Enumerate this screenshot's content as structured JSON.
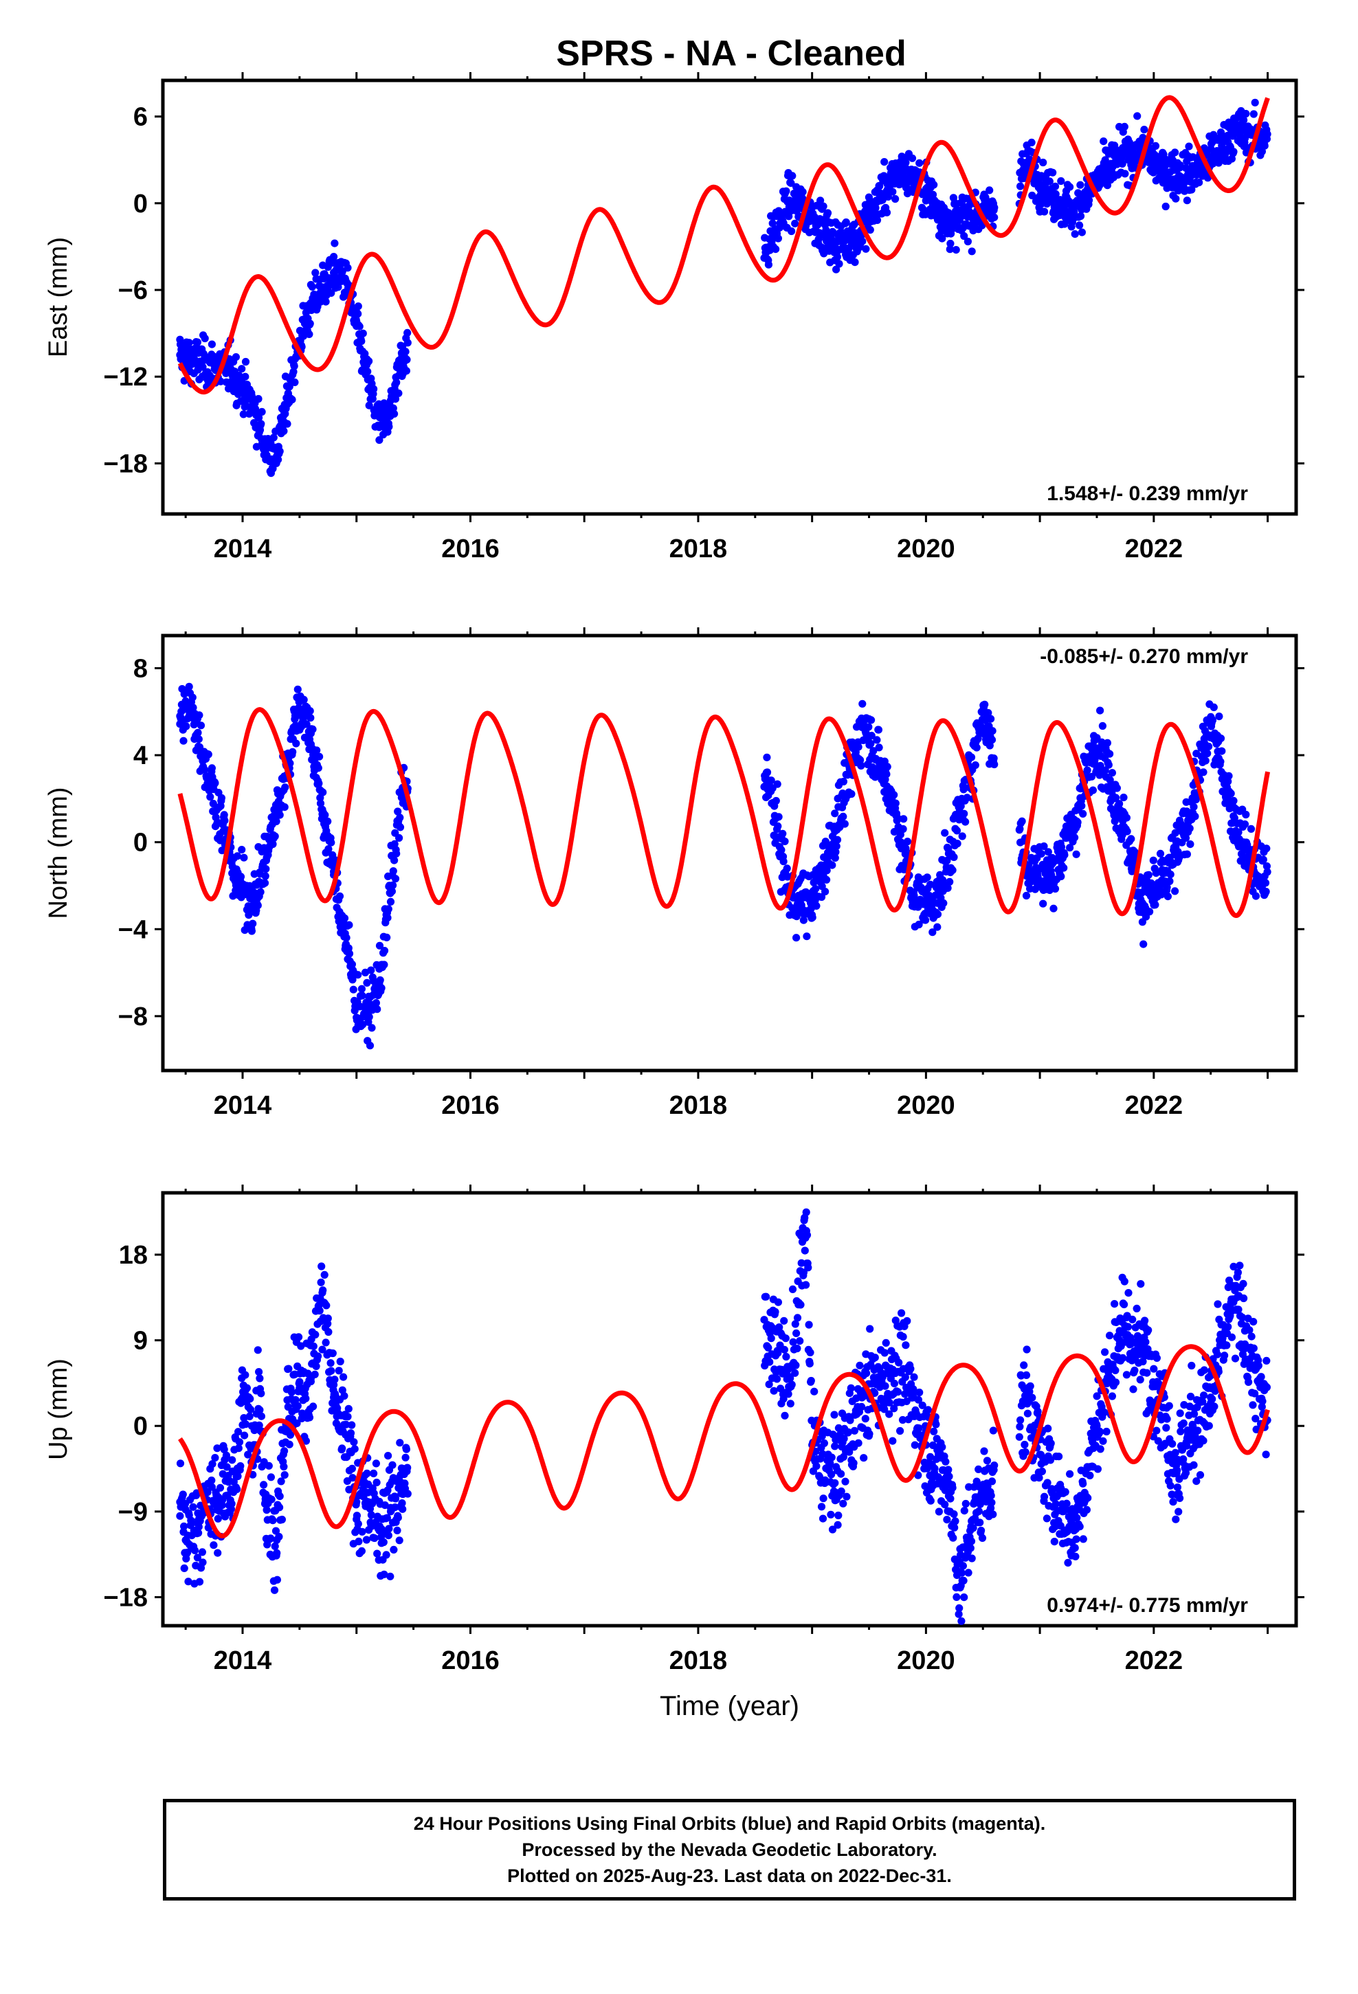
{
  "title": "SPRS  - NA - Cleaned",
  "footer": {
    "line1": "24 Hour Positions Using Final Orbits (blue) and Rapid Orbits (magenta).",
    "line2": "Processed by the Nevada Geodetic Laboratory.",
    "line3": "Plotted on 2025-Aug-23. Last data on 2022-Dec-31."
  },
  "colors": {
    "observations": "#0000ff",
    "model": "#ff0000",
    "frame": "#000000"
  },
  "chart_data": [
    {
      "type": "scatter",
      "name": "east",
      "title": "",
      "xlabel": "",
      "ylabel": "East (mm)",
      "xlim": [
        2013.3,
        2023.25
      ],
      "ylim": [
        -21.5,
        8.5
      ],
      "xticks": [
        2014,
        2016,
        2018,
        2020,
        2022
      ],
      "yticks": [
        -18,
        -12,
        -6,
        0,
        6
      ],
      "rate_label": "1.548+/- 0.239 mm/yr",
      "rate_label_position": "bottom-right",
      "data_segments": [
        [
          2013.45,
          2015.45
        ],
        [
          2018.58,
          2020.6
        ],
        [
          2020.82,
          2023.0
        ]
      ],
      "series": [
        {
          "name": "",
          "kind": "points",
          "color": "#0000ff",
          "x": [
            2013.45,
            2013.5,
            2013.9,
            2014.0,
            2014.1,
            2014.2,
            2014.3,
            2014.4,
            2014.5,
            2014.6,
            2014.7,
            2014.8,
            2014.9,
            2015.0,
            2015.1,
            2015.2,
            2015.3,
            2015.4,
            2018.6,
            2018.8,
            2019.0,
            2019.2,
            2019.4,
            2019.6,
            2019.8,
            2020.0,
            2020.2,
            2020.4,
            2020.6,
            2020.9,
            2021.1,
            2021.3,
            2021.5,
            2021.7,
            2021.9,
            2022.1,
            2022.3,
            2022.5,
            2022.7,
            2022.9
          ],
          "y": [
            -10.5,
            -10.8,
            -11.5,
            -12.8,
            -14.2,
            -16.8,
            -17.5,
            -13.2,
            -9.5,
            -7.2,
            -5.8,
            -4.8,
            -5.2,
            -8.5,
            -12.2,
            -15.5,
            -14.2,
            -10.5,
            -3.2,
            0.2,
            -0.8,
            -2.8,
            -2.3,
            0.5,
            2.3,
            1.0,
            -1.5,
            -0.8,
            -0.3,
            2.6,
            0.6,
            -0.6,
            1.5,
            3.2,
            3.6,
            2.2,
            2.0,
            3.0,
            5.0,
            4.5
          ]
        },
        {
          "name": "",
          "kind": "model",
          "color": "#ff0000",
          "start_year": 2013.45,
          "end_year": 2023.0,
          "offset_at_start": -9.9,
          "rate_mm_per_yr": 1.548,
          "annual_sin": 2.85,
          "annual_cos": 2.2,
          "semiannual_sin": 0.2,
          "semiannual_cos": 0.2
        }
      ]
    },
    {
      "type": "scatter",
      "name": "north",
      "title": "",
      "xlabel": "",
      "ylabel": "North (mm)",
      "xlim": [
        2013.3,
        2023.25
      ],
      "ylim": [
        -10.5,
        9.5
      ],
      "xticks": [
        2014,
        2016,
        2018,
        2020,
        2022
      ],
      "yticks": [
        -8,
        -4,
        0,
        4,
        8
      ],
      "rate_label": "-0.085+/- 0.270 mm/yr",
      "rate_label_position": "top-right",
      "data_segments": [
        [
          2013.45,
          2015.45
        ],
        [
          2018.58,
          2020.6
        ],
        [
          2020.82,
          2023.0
        ]
      ],
      "series": [
        {
          "name": "",
          "kind": "points",
          "color": "#0000ff",
          "x": [
            2013.45,
            2013.55,
            2013.95,
            2014.1,
            2014.25,
            2014.4,
            2014.5,
            2014.6,
            2014.7,
            2014.8,
            2014.9,
            2015.0,
            2015.1,
            2015.2,
            2015.3,
            2015.4,
            2018.6,
            2018.8,
            2019.0,
            2019.2,
            2019.45,
            2019.7,
            2019.9,
            2020.1,
            2020.3,
            2020.5,
            2020.9,
            2021.1,
            2021.3,
            2021.5,
            2021.7,
            2021.9,
            2022.1,
            2022.3,
            2022.5,
            2022.7,
            2022.9
          ],
          "y": [
            5.8,
            6.2,
            -1.8,
            -2.8,
            0.2,
            3.8,
            6.5,
            5.0,
            1.5,
            -1.5,
            -4.2,
            -7.5,
            -7.8,
            -6.5,
            -2.0,
            2.2,
            3.2,
            -2.5,
            -2.8,
            0.5,
            5.5,
            2.0,
            -2.6,
            -2.8,
            1.2,
            6.0,
            -1.2,
            -1.5,
            0.8,
            4.8,
            1.5,
            -2.8,
            -1.8,
            1.0,
            5.5,
            1.2,
            -1.5
          ]
        },
        {
          "name": "",
          "kind": "model",
          "color": "#ff0000",
          "start_year": 2013.45,
          "end_year": 2023.0,
          "offset_at_start": 2.05,
          "rate_mm_per_yr": -0.085,
          "annual_sin": 4.0,
          "annual_cos": 1.45,
          "semiannual_sin": 0.2,
          "semiannual_cos": 0.55
        }
      ]
    },
    {
      "type": "scatter",
      "name": "up",
      "title": "",
      "xlabel": "Time (year)",
      "ylabel": "Up (mm)",
      "xlim": [
        2013.3,
        2023.25
      ],
      "ylim": [
        -21,
        24.5
      ],
      "xticks": [
        2014,
        2016,
        2018,
        2020,
        2022
      ],
      "yticks": [
        -18,
        -9,
        0,
        9,
        18
      ],
      "rate_label": "0.974+/- 0.775 mm/yr",
      "rate_label_position": "bottom-right",
      "data_segments": [
        [
          2013.45,
          2015.45
        ],
        [
          2018.58,
          2020.6
        ],
        [
          2020.82,
          2023.0
        ]
      ],
      "series": [
        {
          "name": "",
          "kind": "points",
          "color": "#0000ff",
          "x": [
            2013.45,
            2013.5,
            2013.95,
            2014.0,
            2014.1,
            2014.15,
            2014.2,
            2014.3,
            2014.4,
            2014.5,
            2014.6,
            2014.7,
            2014.8,
            2014.9,
            2015.0,
            2015.1,
            2015.2,
            2015.3,
            2015.4,
            2018.65,
            2018.8,
            2018.95,
            2019.0,
            2019.2,
            2019.4,
            2019.6,
            2019.8,
            2020.0,
            2020.2,
            2020.3,
            2020.4,
            2020.9,
            2021.0,
            2021.2,
            2021.3,
            2021.5,
            2021.6,
            2021.7,
            2021.9,
            2022.0,
            2022.2,
            2022.3,
            2022.5,
            2022.7,
            2022.8,
            2022.95
          ],
          "y": [
            -8.0,
            -12.0,
            -5.0,
            3.0,
            -2.0,
            5.0,
            -8.0,
            -12.0,
            2.0,
            4.0,
            5.0,
            14.0,
            3.0,
            1.0,
            -8.0,
            -7.0,
            -11.0,
            -9.0,
            -6.0,
            10.0,
            4.0,
            20.5,
            -2.0,
            -6.0,
            2.0,
            5.0,
            6.0,
            -2.0,
            -6.0,
            -17.0,
            -10.0,
            3.0,
            -3.0,
            -9.0,
            -11.0,
            0.0,
            5.0,
            10.0,
            8.0,
            6.0,
            -5.0,
            -1.0,
            3.0,
            13.0,
            10.0,
            2.0
          ]
        },
        {
          "name": "",
          "kind": "model",
          "color": "#ff0000",
          "start_year": 2013.45,
          "end_year": 2023.0,
          "offset_at_start": -5.4,
          "rate_mm_per_yr": 0.974,
          "annual_sin": 5.2,
          "annual_cos": -2.6,
          "semiannual_sin": 0.6,
          "semiannual_cos": 0.4
        }
      ]
    }
  ]
}
